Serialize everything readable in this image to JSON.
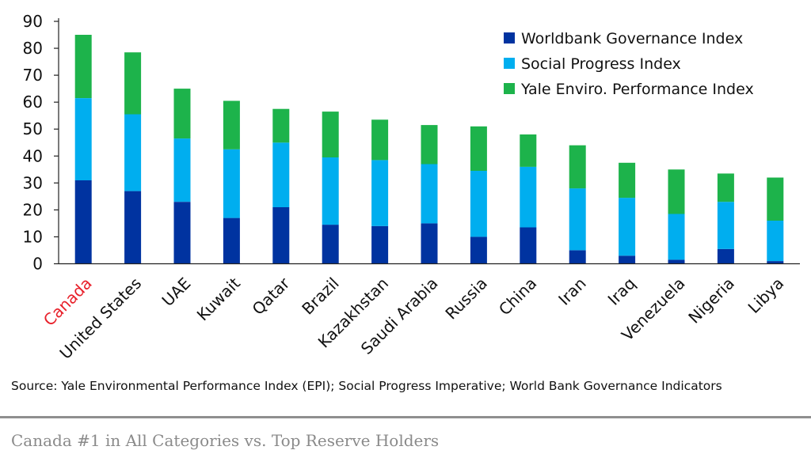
{
  "chart_data": {
    "type": "stacked-bar",
    "categories": [
      "Canada",
      "United States",
      "UAE",
      "Kuwait",
      "Qatar",
      "Brazil",
      "Kazakhstan",
      "Saudi Arabia",
      "Russia",
      "China",
      "Iran",
      "Iraq",
      "Venezuela",
      "Nigeria",
      "Libya"
    ],
    "highlight_category": "Canada",
    "series": [
      {
        "name": "Worldbank Governance Index",
        "color": "#0033a0",
        "values": [
          31,
          27,
          23,
          17,
          21,
          14.5,
          14,
          15,
          10,
          13.5,
          5,
          3,
          1.5,
          5.5,
          1
        ]
      },
      {
        "name": "Social Progress Index",
        "color": "#00aeef",
        "values": [
          30.5,
          28.5,
          23.5,
          25.5,
          24,
          25,
          24.5,
          22,
          24.5,
          22.5,
          23,
          21.5,
          17,
          17.5,
          15
        ]
      },
      {
        "name": "Yale Enviro. Performance Index",
        "color": "#1db34b",
        "values": [
          23.5,
          23,
          18.5,
          18,
          12.5,
          17,
          15,
          14.5,
          16.5,
          12,
          16,
          13,
          16.5,
          10.5,
          16
        ]
      }
    ],
    "ylim": [
      0,
      90
    ],
    "yticks": [
      0,
      10,
      20,
      30,
      40,
      50,
      60,
      70,
      80,
      90
    ],
    "legend_position": "top-right",
    "grid": false
  },
  "source_note": "Source: Yale Environmental Performance Index (EPI); Social Progress Imperative; World Bank Governance Indicators",
  "caption": "Canada #1 in All Categories vs. Top Reserve Holders",
  "colors": {
    "highlight": "#e8202a",
    "axis": "#222222",
    "rule": "#8f8f8f",
    "caption": "#8a8a8a"
  }
}
